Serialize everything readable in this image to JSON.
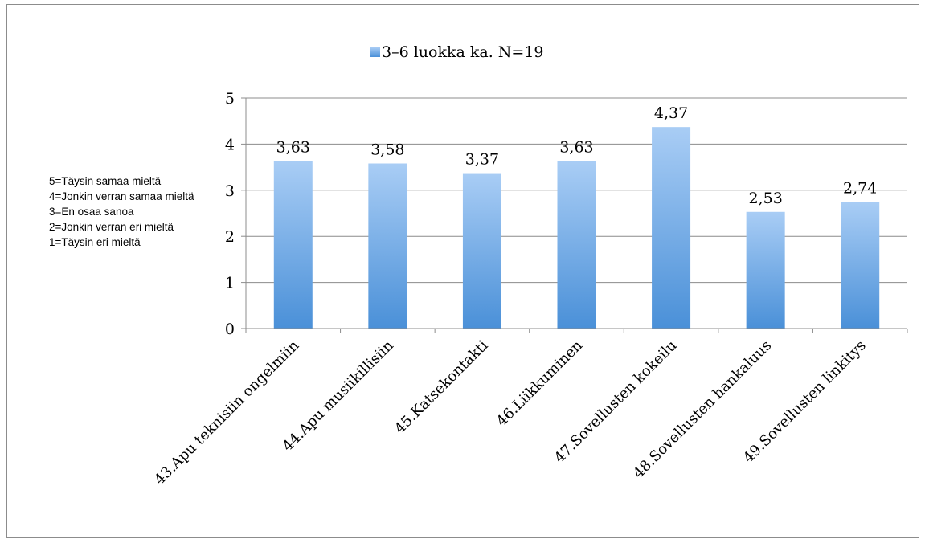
{
  "legend": {
    "label": "3–6 luokka ka.  N=19",
    "color": "#7fb2ea",
    "icon": "legend-swatch"
  },
  "note": {
    "lines": [
      "5=Täysin samaa mieltä",
      "4=Jonkin verran samaa mieltä",
      "3=En osaa sanoa",
      "2=Jonkin verran eri mieltä",
      "1=Täysin eri mieltä"
    ]
  },
  "chart_data": {
    "type": "bar",
    "title": "",
    "xlabel": "",
    "ylabel": "",
    "categories": [
      "43.Apu teknisiin ongelmiin",
      "44.Apu musiikillisiin",
      "45.Katsekontakti",
      "46.Liikkuminen",
      "47.Sovellusten kokeilu",
      "48.Sovellusten hankaluus",
      "49.Sovellusten linkitys"
    ],
    "series": [
      {
        "name": "3–6 luokka ka.  N=19",
        "values": [
          3.63,
          3.58,
          3.37,
          3.63,
          4.37,
          2.53,
          2.74
        ],
        "labels": [
          "3,63",
          "3,58",
          "3,37",
          "3,63",
          "4,37",
          "2,53",
          "2,74"
        ]
      }
    ],
    "ylim": [
      0,
      5
    ],
    "yticks": [
      0,
      1,
      2,
      3,
      4,
      5
    ],
    "grid": true,
    "legend_position": "top-center",
    "colors": {
      "bar_top": "#a9cdf5",
      "bar_bottom": "#4a90d8",
      "grid": "#8c8c8c"
    }
  }
}
